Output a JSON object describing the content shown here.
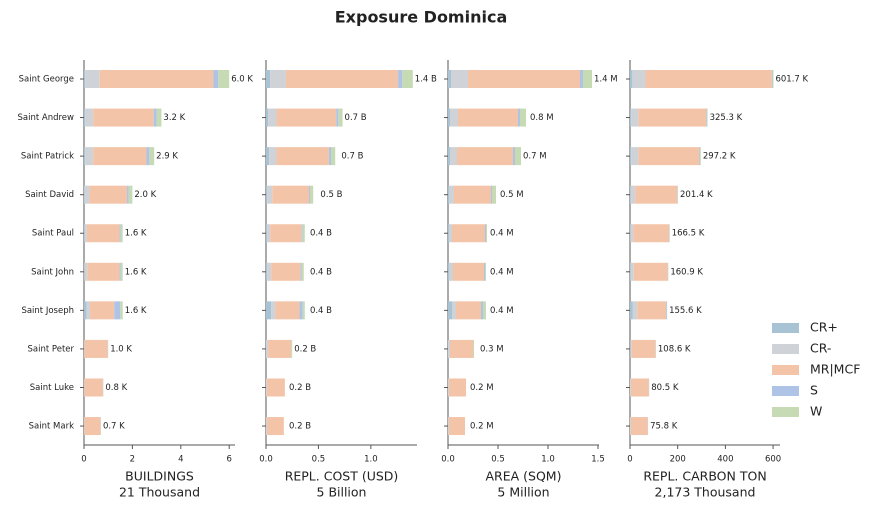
{
  "title": "Exposure Dominica",
  "categories": [
    "Saint George",
    "Saint Andrew",
    "Saint Patrick",
    "Saint David",
    "Saint Paul",
    "Saint John",
    "Saint Joseph",
    "Saint Peter",
    "Saint Luke",
    "Saint Mark"
  ],
  "legend": {
    "position": "right",
    "entries": [
      {
        "name": "CR+",
        "color": "#a8c4d4"
      },
      {
        "name": "CR-",
        "color": "#cfd2d6"
      },
      {
        "name": "MR|MCF",
        "color": "#f4c4a8"
      },
      {
        "name": "S",
        "color": "#aec3e6"
      },
      {
        "name": "W",
        "color": "#c6dab4"
      }
    ]
  },
  "chart_data": [
    {
      "type": "stacked_barh",
      "xlabel": "BUILDINGS",
      "xsublabel": "21 Thousand",
      "xlim": [
        0,
        6.24
      ],
      "xticks": [
        0,
        2,
        4,
        6
      ],
      "series": [
        {
          "values": [
            0.05,
            0.05,
            0.05,
            0.03,
            0.02,
            0.02,
            0.1,
            0,
            0,
            0
          ]
        },
        {
          "values": [
            0.6,
            0.33,
            0.33,
            0.2,
            0.1,
            0.12,
            0.15,
            0.02,
            0.02,
            0.02
          ]
        },
        {
          "values": [
            4.7,
            2.5,
            2.2,
            1.55,
            1.35,
            1.33,
            1.0,
            0.96,
            0.76,
            0.66
          ]
        },
        {
          "values": [
            0.2,
            0.12,
            0.12,
            0.07,
            0.05,
            0.05,
            0.25,
            0.01,
            0.01,
            0.01
          ]
        },
        {
          "values": [
            0.45,
            0.2,
            0.2,
            0.15,
            0.08,
            0.08,
            0.1,
            0.01,
            0.01,
            0.01
          ]
        }
      ],
      "totals": [
        {
          "value": 6.0,
          "label": "6.0 K"
        },
        {
          "value": 3.2,
          "label": "3.2 K"
        },
        {
          "value": 2.9,
          "label": "2.9 K"
        },
        {
          "value": 2.0,
          "label": "2.0 K"
        },
        {
          "value": 1.6,
          "label": "1.6 K"
        },
        {
          "value": 1.6,
          "label": "1.6 K"
        },
        {
          "value": 1.6,
          "label": "1.6 K"
        },
        {
          "value": 1.0,
          "label": "1.0 K"
        },
        {
          "value": 0.8,
          "label": "0.8 K"
        },
        {
          "value": 0.7,
          "label": "0.7 K"
        }
      ]
    },
    {
      "type": "stacked_barh",
      "xlabel": "REPL. COST (USD)",
      "xsublabel": "5 Billion",
      "xlim": [
        0,
        1.44
      ],
      "xticks": [
        {
          "value": 0,
          "label": "0.0"
        },
        0.5,
        {
          "value": 1,
          "label": "1.0"
        }
      ],
      "series": [
        {
          "values": [
            0.04,
            0.02,
            0.03,
            0.01,
            0.01,
            0.01,
            0.05,
            0,
            0,
            0
          ]
        },
        {
          "values": [
            0.15,
            0.08,
            0.07,
            0.05,
            0.03,
            0.04,
            0.04,
            0.02,
            0.01,
            0.01
          ]
        },
        {
          "values": [
            1.07,
            0.57,
            0.5,
            0.35,
            0.3,
            0.28,
            0.23,
            0.22,
            0.17,
            0.16
          ]
        },
        {
          "values": [
            0.04,
            0.02,
            0.02,
            0.01,
            0.01,
            0.01,
            0.03,
            0,
            0,
            0
          ]
        },
        {
          "values": [
            0.1,
            0.04,
            0.04,
            0.03,
            0.02,
            0.02,
            0.02,
            0.01,
            0,
            0
          ]
        }
      ],
      "totals": [
        {
          "value": 1.4,
          "label": "1.4 B"
        },
        {
          "value": 0.7,
          "label": "0.7 B"
        },
        {
          "value": 0.7,
          "label": "0.7 B"
        },
        {
          "value": 0.5,
          "label": "0.5 B"
        },
        {
          "value": 0.4,
          "label": "0.4 B"
        },
        {
          "value": 0.4,
          "label": "0.4 B"
        },
        {
          "value": 0.4,
          "label": "0.4 B"
        },
        {
          "value": 0.2,
          "label": "0.2 B"
        },
        {
          "value": 0.2,
          "label": "0.2 B"
        },
        {
          "value": 0.2,
          "label": "0.2 B"
        }
      ]
    },
    {
      "type": "stacked_barh",
      "xlabel": "AREA (SQM)",
      "xsublabel": "5 Million",
      "xlim": [
        0,
        1.51
      ],
      "xticks": [
        {
          "value": 0,
          "label": "0.0"
        },
        0.5,
        {
          "value": 1,
          "label": "1.0"
        },
        1.5
      ],
      "series": [
        {
          "values": [
            0.03,
            0.02,
            0.02,
            0.01,
            0.01,
            0.01,
            0.04,
            0,
            0,
            0
          ]
        },
        {
          "values": [
            0.17,
            0.08,
            0.07,
            0.05,
            0.03,
            0.04,
            0.04,
            0.02,
            0.01,
            0.01
          ]
        },
        {
          "values": [
            1.12,
            0.6,
            0.56,
            0.37,
            0.33,
            0.31,
            0.25,
            0.23,
            0.17,
            0.16
          ]
        },
        {
          "values": [
            0.03,
            0.02,
            0.02,
            0.01,
            0.01,
            0.01,
            0.02,
            0,
            0,
            0
          ]
        },
        {
          "values": [
            0.09,
            0.06,
            0.06,
            0.04,
            0.01,
            0.01,
            0.03,
            0.01,
            0,
            0
          ]
        }
      ],
      "totals": [
        {
          "value": 1.4,
          "label": "1.4 M"
        },
        {
          "value": 0.8,
          "label": "0.8 M"
        },
        {
          "value": 0.7,
          "label": "0.7 M"
        },
        {
          "value": 0.5,
          "label": "0.5 M"
        },
        {
          "value": 0.4,
          "label": "0.4 M"
        },
        {
          "value": 0.4,
          "label": "0.4 M"
        },
        {
          "value": 0.4,
          "label": "0.4 M"
        },
        {
          "value": 0.3,
          "label": "0.3 M"
        },
        {
          "value": 0.2,
          "label": "0.2 M"
        },
        {
          "value": 0.2,
          "label": "0.2 M"
        }
      ]
    },
    {
      "type": "stacked_barh",
      "xlabel": "REPL. CARBON TON",
      "xsublabel": "2,173 Thousand",
      "xlim": [
        0,
        629
      ],
      "xticks": [
        0,
        200,
        400,
        600
      ],
      "series": [
        {
          "values": [
            10,
            5,
            5,
            2,
            2,
            2,
            12,
            1,
            0,
            0
          ]
        },
        {
          "values": [
            55,
            30,
            30,
            20,
            12,
            14,
            18,
            6,
            4,
            4
          ]
        },
        {
          "values": [
            530,
            285,
            256,
            176,
            150,
            142,
            121,
            100,
            75,
            70.5
          ]
        },
        {
          "values": [
            2.7,
            3,
            3,
            2,
            1.5,
            1.9,
            3.6,
            1,
            1,
            1
          ]
        },
        {
          "values": [
            4,
            2.3,
            3.2,
            1.4,
            1,
            1,
            1,
            0.6,
            0.5,
            0.3
          ]
        }
      ],
      "totals": [
        {
          "value": 601.7,
          "label": "601.7 K"
        },
        {
          "value": 325.3,
          "label": "325.3 K"
        },
        {
          "value": 297.2,
          "label": "297.2 K"
        },
        {
          "value": 201.4,
          "label": "201.4 K"
        },
        {
          "value": 166.5,
          "label": "166.5 K"
        },
        {
          "value": 160.9,
          "label": "160.9 K"
        },
        {
          "value": 155.6,
          "label": "155.6 K"
        },
        {
          "value": 108.6,
          "label": "108.6 K"
        },
        {
          "value": 80.5,
          "label": "80.5 K"
        },
        {
          "value": 75.8,
          "label": "75.8 K"
        }
      ]
    }
  ]
}
